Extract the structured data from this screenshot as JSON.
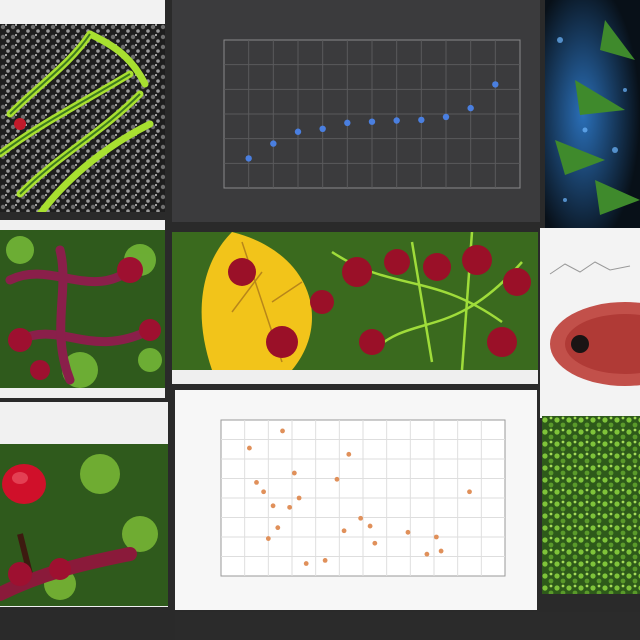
{
  "tiles": {
    "top_left_caption": "",
    "mid_left_caption": "",
    "center_strip_caption": "",
    "right_top_caption": "",
    "right_mid_caption": "",
    "bottom_strip": ""
  },
  "colors": {
    "leaf_green": "#8fd13a",
    "berry_red": "#8e1026",
    "foliage_dark": "#2f5a1c",
    "chart_dark_bg": "#3b3b3d",
    "chart_dot_blue": "#4a7fe0",
    "scatter_dot_orange": "#e0905a"
  },
  "chart_data": [
    {
      "type": "scatter",
      "title": "",
      "xlabel": "",
      "ylabel": "",
      "grid": true,
      "x": [
        1,
        2,
        3,
        4,
        5,
        6,
        7,
        8,
        9,
        10,
        11
      ],
      "y": [
        0.5,
        0.75,
        0.95,
        1.0,
        1.1,
        1.12,
        1.14,
        1.15,
        1.2,
        1.35,
        1.75
      ],
      "xlim": [
        0,
        12
      ],
      "ylim": [
        0,
        2.5
      ]
    },
    {
      "type": "scatter",
      "title": "",
      "xlabel": "",
      "ylabel": "",
      "grid": true,
      "x": [
        1.2,
        1.8,
        2.6,
        3.1,
        3.3,
        2.2,
        2.4,
        4.9,
        5.4,
        6.3,
        6.5,
        4.4,
        5.2,
        2.0,
        2.9,
        1.5,
        7.9,
        8.7,
        9.1,
        9.3,
        10.5,
        3.6,
        5.9
      ],
      "y": [
        8.2,
        5.4,
        9.3,
        6.6,
        5.0,
        4.5,
        3.1,
        6.2,
        7.8,
        3.2,
        2.1,
        1.0,
        2.9,
        2.4,
        4.4,
        6.0,
        2.8,
        1.4,
        2.5,
        1.6,
        5.4,
        0.8,
        3.7
      ],
      "xlim": [
        0,
        12
      ],
      "ylim": [
        0,
        10
      ]
    }
  ]
}
